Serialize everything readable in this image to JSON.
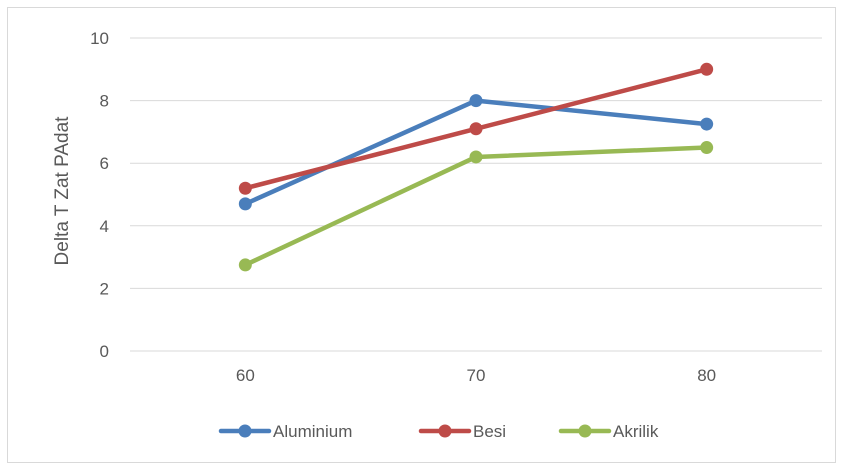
{
  "chart_data": {
    "type": "line",
    "title": "",
    "xlabel": "",
    "ylabel": "Delta T Zat PAdat",
    "categories": [
      "60",
      "70",
      "80"
    ],
    "ylim": [
      0,
      10
    ],
    "yticks": [
      0,
      2,
      4,
      6,
      8,
      10
    ],
    "grid": true,
    "legend_position": "bottom",
    "series": [
      {
        "name": "Aluminium",
        "values": [
          4.7,
          8.0,
          7.25
        ],
        "color": "#4a7ebb"
      },
      {
        "name": "Besi",
        "values": [
          5.2,
          7.1,
          9.0
        ],
        "color": "#be4b48"
      },
      {
        "name": "Akrilik",
        "values": [
          2.75,
          6.2,
          6.5
        ],
        "color": "#98b954"
      }
    ]
  }
}
